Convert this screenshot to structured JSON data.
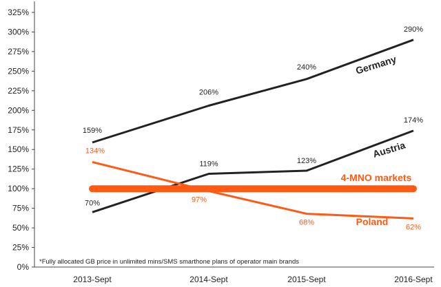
{
  "chart_data": {
    "type": "line",
    "categories": [
      "2013-Sept",
      "2014-Sept",
      "2015-Sept",
      "2016-Sept"
    ],
    "y_ticks": [
      "0%",
      "25%",
      "50%",
      "75%",
      "100%",
      "125%",
      "150%",
      "175%",
      "200%",
      "225%",
      "250%",
      "275%",
      "300%",
      "325%"
    ],
    "ylim": [
      0,
      325
    ],
    "grid": false,
    "series": [
      {
        "name": "Germany",
        "color": "#222222",
        "values": [
          159,
          206,
          240,
          290
        ],
        "data_labels": [
          "159%",
          "206%",
          "240%",
          "290%"
        ]
      },
      {
        "name": "Austria",
        "color": "#222222",
        "values": [
          70,
          119,
          123,
          174
        ],
        "data_labels": [
          "70%",
          "119%",
          "123%",
          "174%"
        ]
      },
      {
        "name": "4-MNO markets",
        "color": "#ff5a14",
        "values": [
          100,
          100,
          100,
          100
        ],
        "data_labels": []
      },
      {
        "name": "Poland",
        "color": "#ff5a14",
        "values": [
          134,
          97,
          68,
          62
        ],
        "data_labels": [
          "134%",
          "97%",
          "68%",
          "62%"
        ]
      }
    ],
    "footnote": "*Fully allocated GB price in unlimited mins/SMS smarthone plans of operator main brands"
  }
}
